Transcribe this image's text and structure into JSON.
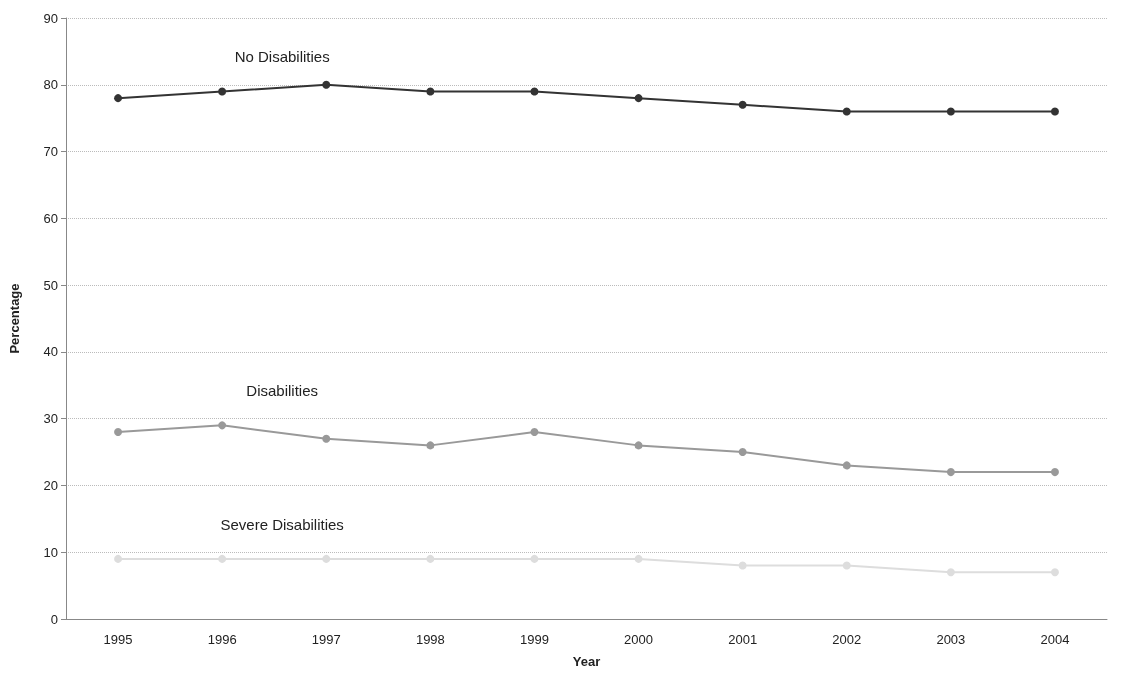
{
  "chart_data": {
    "type": "line",
    "xlabel": "Year",
    "ylabel": "Percentage",
    "categories": [
      "1995",
      "1996",
      "1997",
      "1998",
      "1999",
      "2000",
      "2001",
      "2002",
      "2003",
      "2004"
    ],
    "series": [
      {
        "name": "No Disabilities",
        "color": "#333333",
        "values": [
          78,
          79,
          80,
          79,
          79,
          78,
          77,
          76,
          76,
          76
        ]
      },
      {
        "name": "Disabilities",
        "color": "#999999",
        "values": [
          28,
          29,
          27,
          26,
          28,
          26,
          25,
          23,
          22,
          22
        ]
      },
      {
        "name": "Severe Disabilities",
        "color": "#dddddd",
        "values": [
          9,
          9,
          9,
          9,
          9,
          9,
          8,
          8,
          7,
          7
        ]
      }
    ],
    "ylim": [
      0,
      90
    ],
    "yticks": [
      0,
      10,
      20,
      30,
      40,
      50,
      60,
      70,
      80,
      90
    ],
    "grid": "y",
    "legend": false,
    "marker": "circle",
    "line_style": "solid"
  }
}
